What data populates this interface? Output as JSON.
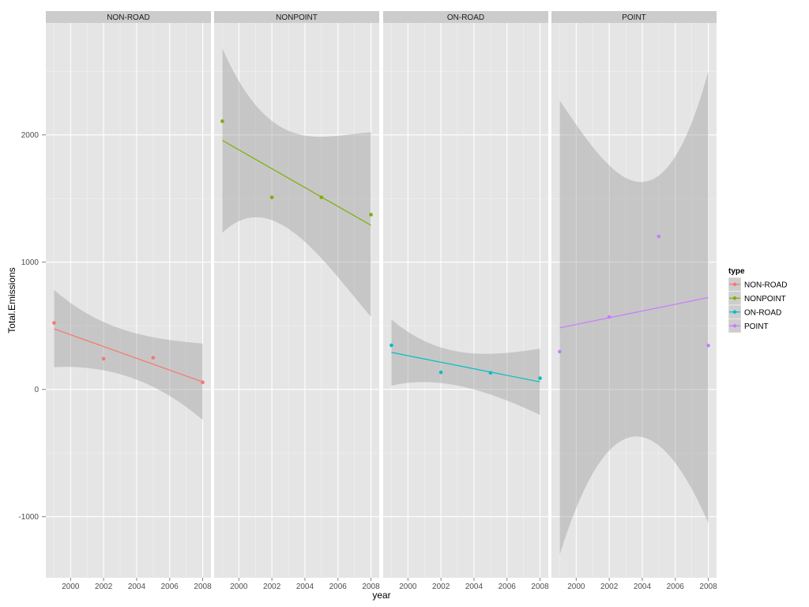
{
  "chart_data": {
    "type": "scatter",
    "facets": [
      "NON-ROAD",
      "NONPOINT",
      "ON-ROAD",
      "POINT"
    ],
    "xlabel": "year",
    "ylabel": "Total.Emissions",
    "xlim": [
      1998.5,
      2008.5
    ],
    "ylim": [
      -1480,
      2880
    ],
    "x_ticks": [
      2000,
      2002,
      2004,
      2006,
      2008
    ],
    "y_ticks": [
      -1000,
      0,
      1000,
      2000
    ],
    "grid": true,
    "smooth": "linear fit with confidence band",
    "legend": {
      "title": "type",
      "position": "right",
      "entries": [
        "NON-ROAD",
        "NONPOINT",
        "ON-ROAD",
        "POINT"
      ]
    },
    "series": [
      {
        "name": "NON-ROAD",
        "color": "#F8766D",
        "x": [
          1999,
          2002,
          2005,
          2008
        ],
        "y": [
          522.94,
          240.85,
          248.93,
          55.82
        ],
        "fit": {
          "y_start": 476,
          "y_end": 59
        },
        "band": {
          "x": [
            1999,
            2002,
            2005,
            2008
          ],
          "upper": [
            782,
            530,
            410,
            360
          ],
          "lower": [
            175,
            150,
            20,
            -240
          ]
        }
      },
      {
        "name": "NONPOINT",
        "color": "#7CAE00",
        "x": [
          1999,
          2002,
          2005,
          2008
        ],
        "y": [
          2107.63,
          1509.5,
          1509.5,
          1373.21
        ],
        "fit": {
          "y_start": 1957,
          "y_end": 1290
        },
        "band": {
          "x": [
            1999,
            2002,
            2005,
            2008
          ],
          "upper": [
            2680,
            2110,
            1985,
            2020
          ],
          "lower": [
            1230,
            1330,
            1030,
            570
          ]
        }
      },
      {
        "name": "ON-ROAD",
        "color": "#00BFC4",
        "x": [
          1999,
          2002,
          2005,
          2008
        ],
        "y": [
          346.82,
          134.31,
          130.43,
          88.28
        ],
        "fit": {
          "y_start": 291,
          "y_end": 59
        },
        "band": {
          "x": [
            1999,
            2002,
            2005,
            2008
          ],
          "upper": [
            550,
            330,
            280,
            320
          ],
          "lower": [
            30,
            50,
            -40,
            -200
          ]
        }
      },
      {
        "name": "POINT",
        "color": "#C77CFF",
        "x": [
          1999,
          2002,
          2005,
          2008
        ],
        "y": [
          296.8,
          569.26,
          1202.49,
          344.98
        ],
        "fit": {
          "y_start": 484,
          "y_end": 722
        },
        "band": {
          "x": [
            1999,
            2002,
            2005,
            2008
          ],
          "upper": [
            2270,
            1760,
            1680,
            2500
          ],
          "lower": [
            -1300,
            -480,
            -440,
            -1050
          ]
        }
      }
    ]
  }
}
